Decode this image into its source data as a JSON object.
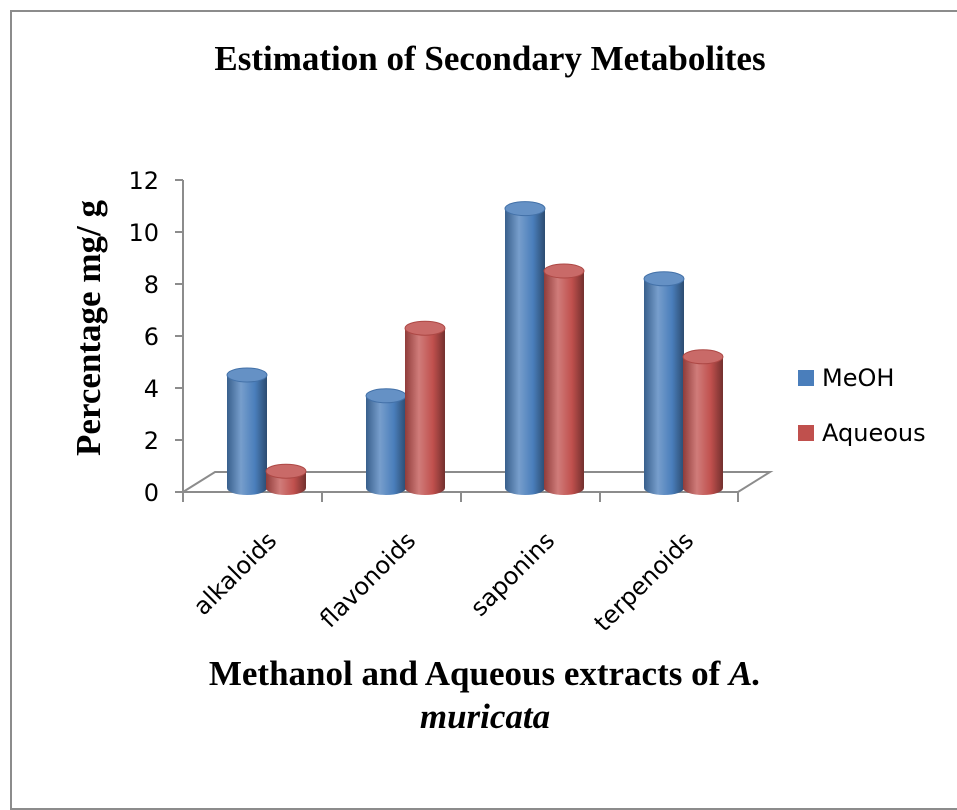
{
  "chart_data": {
    "type": "bar",
    "title": "Estimation of Secondary Metabolites",
    "xlabel": "Methanol and Aqueous extracts of",
    "xlabel_italic_a": "A.",
    "xlabel_italic_b": "muricata",
    "ylabel": "Percentage mg/ g",
    "ylim": [
      0,
      12
    ],
    "yticks": [
      0,
      2,
      4,
      6,
      8,
      10,
      12
    ],
    "categories": [
      "alkaloids",
      "flavonoids",
      "saponins",
      "terpenoids"
    ],
    "series": [
      {
        "name": "MeOH",
        "values": [
          4.5,
          3.7,
          10.9,
          8.2
        ],
        "color": "#4a7ebb"
      },
      {
        "name": "Aqueous",
        "values": [
          0.8,
          6.3,
          8.5,
          5.2
        ],
        "color": "#c0504d"
      }
    ],
    "legend_position": "right",
    "grid": false,
    "style": "3d-cylinder"
  }
}
